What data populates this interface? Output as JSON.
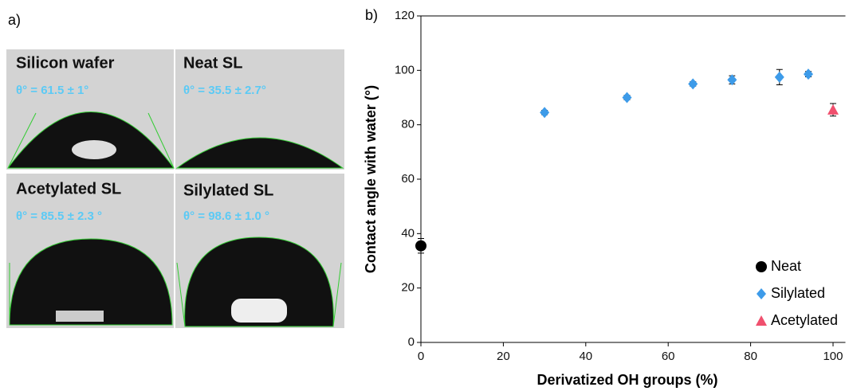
{
  "panel_a": {
    "label": "a)",
    "images": [
      {
        "title": "Silicon wafer",
        "angle": "θ° = 61.5 ± 1°"
      },
      {
        "title": "Neat SL",
        "angle": "θ° = 35.5 ± 2.7°"
      },
      {
        "title": "Acetylated SL",
        "angle": "θ° = 85.5 ± 2.3 °"
      },
      {
        "title": "Silylated SL",
        "angle": "θ° = 98.6 ± 1.0 °"
      }
    ]
  },
  "chart_data": {
    "type": "scatter",
    "panel_label": "b)",
    "x_label": "Derivatized OH groups (%)",
    "y_label": "Contact angle with  water (°)",
    "xlim": [
      0,
      103
    ],
    "xticks": [
      0,
      20,
      40,
      60,
      80,
      100
    ],
    "ylim": [
      0,
      120
    ],
    "yticks": [
      0,
      20,
      40,
      60,
      80,
      100,
      120
    ],
    "legend_position": "lower right",
    "series": [
      {
        "name": "Neat",
        "color": "#000000",
        "marker": "circle",
        "x": [
          0
        ],
        "values": [
          35.5
        ],
        "errors": [
          2.7
        ]
      },
      {
        "name": "Silylated",
        "color": "#3d9be9",
        "marker": "diamond",
        "x": [
          30,
          50,
          66,
          75.5,
          87,
          94
        ],
        "values": [
          84.5,
          90,
          95,
          96.5,
          97.5,
          98.6
        ],
        "errors": [
          0.8,
          0.8,
          0.8,
          1.5,
          2.8,
          1.0
        ]
      },
      {
        "name": "Acetylated",
        "color": "#f0506e",
        "marker": "triangle",
        "x": [
          100
        ],
        "values": [
          85.5
        ],
        "errors": [
          2.3
        ]
      }
    ]
  }
}
